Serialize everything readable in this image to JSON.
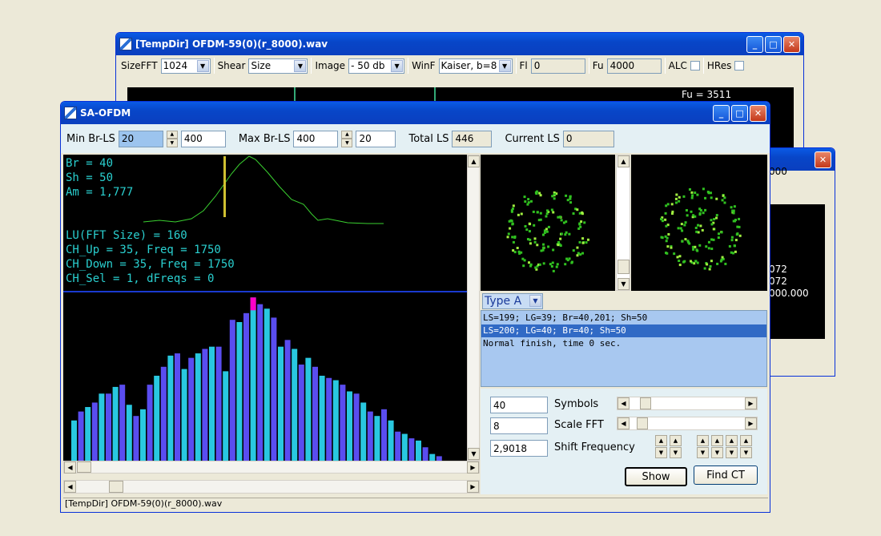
{
  "back_window": {
    "title": "[TempDir] OFDM-59(0)(r_8000).wav",
    "toolbar": {
      "sizefft_label": "SizeFFT",
      "sizefft_value": "1024",
      "shear_label": "Shear",
      "shear_value": "Size",
      "image_label": "Image",
      "image_value": "- 50 db",
      "winf_label": "WinF",
      "winf_value": "Kaiser, b=8",
      "fl_label": "Fl",
      "fl_value": "0",
      "fu_label": "Fu",
      "fu_value": "4000",
      "alc_label": "ALC",
      "hres_label": "HRes"
    },
    "readout": "Fu = 3511"
  },
  "third_window": {
    "values": [
      "000",
      "072",
      "072",
      "000.000"
    ]
  },
  "main_window": {
    "title": "SA-OFDM",
    "controls": {
      "min_label": "Min Br-LS",
      "min_value": "20",
      "min_value2": "400",
      "max_label": "Max Br-LS",
      "max_value": "400",
      "max_value2": "20",
      "total_label": "Total LS",
      "total_value": "446",
      "current_label": "Current LS",
      "current_value": "0"
    },
    "plot_lines": [
      "Br = 40",
      "Sh = 50",
      "Am = 1,777"
    ],
    "plot_lines2": [
      "LU(FFT Size) = 160",
      "CH_Up = 35, Freq = 1750",
      "CH_Down = 35, Freq = 1750",
      "CH_Sel = 1, dFreqs = 0"
    ],
    "type_select": "Type A",
    "log": [
      "LS=199; LG=39; Br=40,201; Sh=50",
      "LS=200; LG=40; Br=40; Sh=50",
      "Normal finish, time 0 sec."
    ],
    "symbols_value": "40",
    "symbols_label": "Symbols",
    "scale_value": "8",
    "scale_label": "Scale FFT",
    "shift_value": "2,9018",
    "shift_label": "Shift Frequency",
    "show_button": "Show",
    "find_button": "Find CT",
    "status": "[TempDir] OFDM-59(0)(r_8000).wav"
  },
  "colors": {
    "bar_a": "#29c8e0",
    "bar_b": "#5a4df0",
    "bar_sel": "#ff00c8",
    "text": "#2ad0d0",
    "curve": "#3ad030"
  },
  "bars": [
    18,
    22,
    24,
    26,
    30,
    30,
    33,
    34,
    25,
    20,
    23,
    34,
    38,
    42,
    47,
    48,
    41,
    46,
    48,
    50,
    51,
    51,
    40,
    63,
    62,
    66,
    73,
    70,
    68,
    64,
    51,
    54,
    50,
    43,
    46,
    42,
    38,
    37,
    36,
    34,
    31,
    30,
    26,
    22,
    20,
    23,
    18,
    13,
    12,
    10,
    9,
    6,
    3,
    2
  ]
}
